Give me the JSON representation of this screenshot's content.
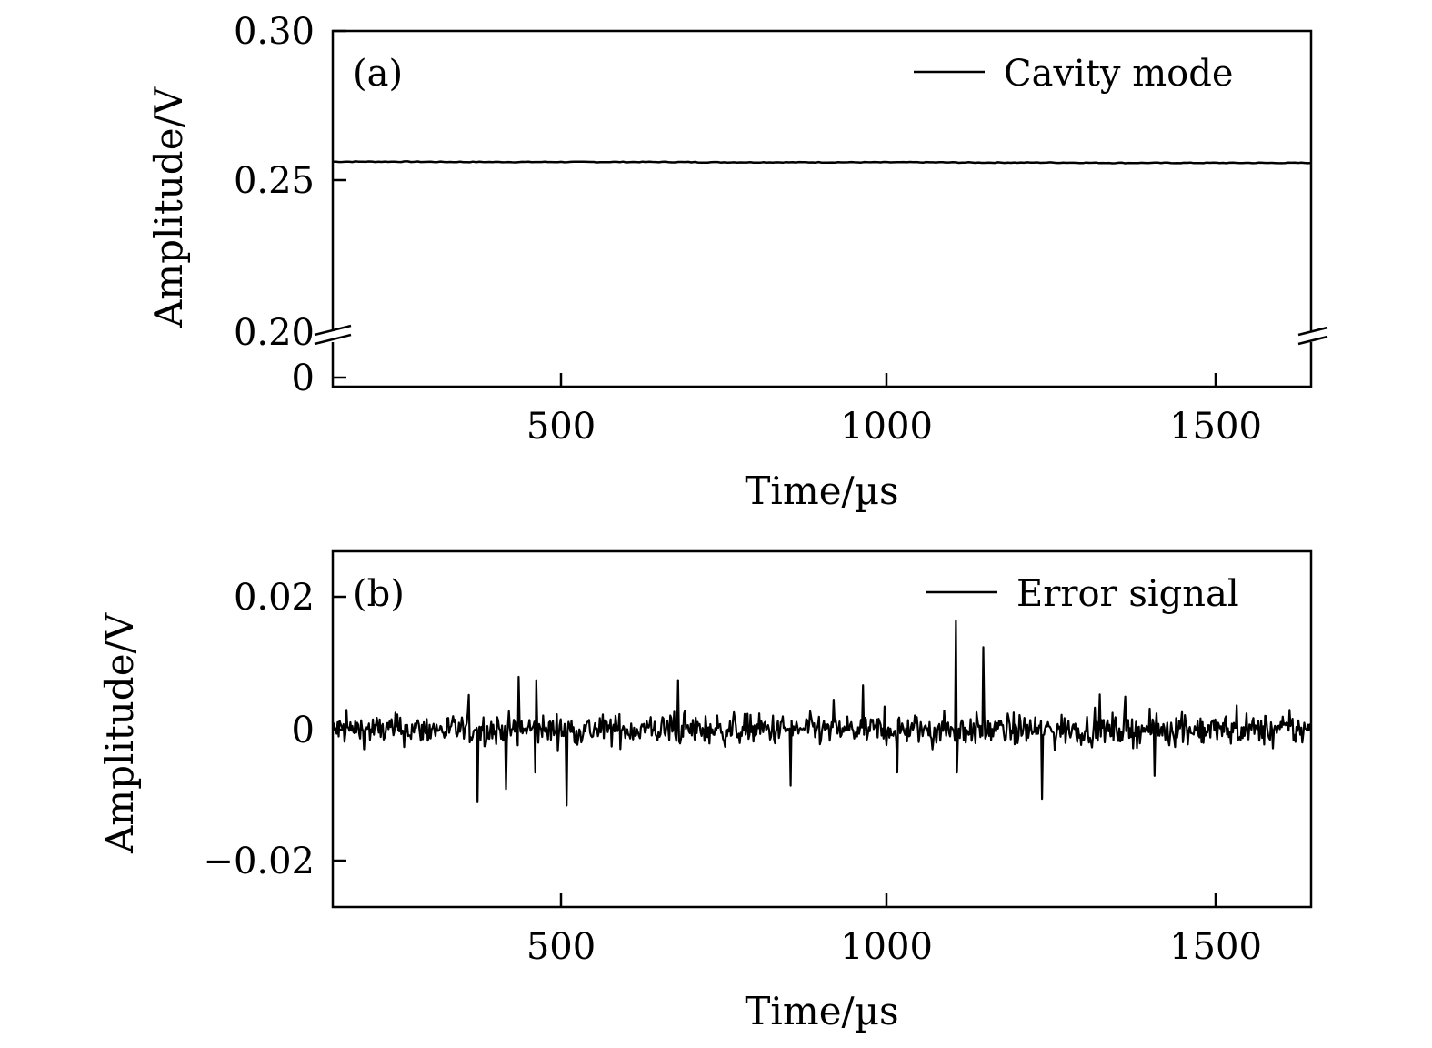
{
  "chart_data": [
    {
      "panel": "(a)",
      "type": "line",
      "xlabel": "Time/µs",
      "ylabel": "Amplitude/V",
      "xlim": [
        150,
        1650
      ],
      "x_ticks": [
        500,
        1000,
        1500
      ],
      "x_tick_labels": [
        "500",
        "1000",
        "1500"
      ],
      "y_axis_broken": true,
      "y_break_between": [
        0,
        0.2
      ],
      "ylim_lower_segment": [
        -0.005,
        0.005
      ],
      "ylim_upper_segment": [
        0.2,
        0.3
      ],
      "y_ticks": [
        0,
        0.2,
        0.25,
        0.3
      ],
      "y_tick_labels": [
        "0",
        "0.20",
        "0.25",
        "0.30"
      ],
      "legend_position": "top-right",
      "series": [
        {
          "name": "Cavity mode",
          "color": "#000000",
          "x": [
            150,
            250,
            350,
            450,
            550,
            650,
            750,
            850,
            950,
            1050,
            1150,
            1250,
            1350,
            1450,
            1550,
            1650
          ],
          "y": [
            0.2567,
            0.2567,
            0.2566,
            0.2566,
            0.2566,
            0.2566,
            0.2565,
            0.2565,
            0.2565,
            0.2565,
            0.2564,
            0.2564,
            0.2563,
            0.2563,
            0.2563,
            0.2563
          ]
        }
      ]
    },
    {
      "panel": "(b)",
      "type": "line",
      "xlabel": "Time/µs",
      "ylabel": "Amplitude/V",
      "xlim": [
        150,
        1650
      ],
      "ylim": [
        -0.027,
        0.027
      ],
      "x_ticks": [
        500,
        1000,
        1500
      ],
      "x_tick_labels": [
        "500",
        "1000",
        "1500"
      ],
      "y_ticks": [
        -0.02,
        0,
        0.02
      ],
      "y_tick_labels": [
        "−0.02",
        "0",
        "0.02"
      ],
      "legend_position": "top-right",
      "series": [
        {
          "name": "Error signal",
          "color": "#000000",
          "noise_amplitude": 0.0025,
          "x_step": 1.5,
          "spikes": [
            {
              "x": 372,
              "y": -0.011
            },
            {
              "x": 415,
              "y": -0.009
            },
            {
              "x": 435,
              "y": 0.008
            },
            {
              "x": 460,
              "y": -0.0065
            },
            {
              "x": 462,
              "y": 0.0075
            },
            {
              "x": 508,
              "y": -0.0115
            },
            {
              "x": 680,
              "y": 0.0075
            },
            {
              "x": 852,
              "y": -0.0085
            },
            {
              "x": 1015,
              "y": -0.0065
            },
            {
              "x": 1105,
              "y": 0.0165
            },
            {
              "x": 1107,
              "y": -0.0065
            },
            {
              "x": 1148,
              "y": 0.0125
            },
            {
              "x": 1237,
              "y": -0.0105
            },
            {
              "x": 1410,
              "y": -0.007
            }
          ]
        }
      ]
    }
  ]
}
